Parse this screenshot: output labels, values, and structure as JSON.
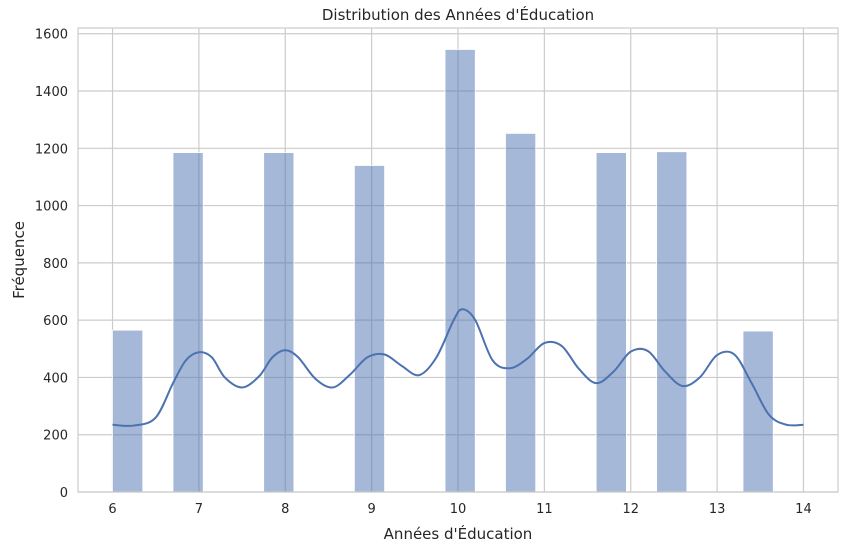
{
  "chart_data": {
    "type": "bar",
    "title": "Distribution des Années d'Éducation",
    "xlabel": "Années d'Éducation",
    "ylabel": "Fréquence",
    "xlim": [
      5.6,
      14.4
    ],
    "ylim": [
      0,
      1620
    ],
    "xticks": [
      6,
      7,
      8,
      9,
      10,
      11,
      12,
      13,
      14
    ],
    "yticks": [
      0,
      200,
      400,
      600,
      800,
      1000,
      1200,
      1400,
      1600
    ],
    "grid": true,
    "bar_color": "#4c72b0",
    "line_color": "#4c72b0",
    "bars": [
      {
        "x0": 6.0,
        "x1": 6.35,
        "value": 565
      },
      {
        "x0": 6.7,
        "x1": 7.05,
        "value": 1185
      },
      {
        "x0": 7.75,
        "x1": 8.1,
        "value": 1185
      },
      {
        "x0": 8.8,
        "x1": 9.15,
        "value": 1140
      },
      {
        "x0": 9.85,
        "x1": 10.2,
        "value": 1545
      },
      {
        "x0": 10.55,
        "x1": 10.9,
        "value": 1252
      },
      {
        "x0": 11.6,
        "x1": 11.95,
        "value": 1185
      },
      {
        "x0": 12.3,
        "x1": 12.65,
        "value": 1188
      },
      {
        "x0": 13.3,
        "x1": 13.65,
        "value": 562
      }
    ],
    "kde": {
      "x": [
        6.0,
        6.25,
        6.5,
        6.7,
        6.85,
        7.0,
        7.15,
        7.3,
        7.5,
        7.7,
        7.85,
        8.0,
        8.15,
        8.35,
        8.55,
        8.75,
        8.95,
        9.15,
        9.35,
        9.55,
        9.75,
        9.95,
        10.05,
        10.2,
        10.4,
        10.6,
        10.8,
        11.0,
        11.2,
        11.4,
        11.6,
        11.8,
        12.0,
        12.2,
        12.4,
        12.6,
        12.8,
        13.0,
        13.2,
        13.4,
        13.6,
        13.8,
        14.0
      ],
      "y": [
        235,
        232,
        260,
        380,
        460,
        488,
        470,
        400,
        365,
        405,
        470,
        495,
        470,
        395,
        365,
        410,
        470,
        480,
        440,
        408,
        470,
        600,
        638,
        600,
        460,
        432,
        465,
        520,
        510,
        430,
        380,
        420,
        490,
        492,
        420,
        370,
        400,
        478,
        480,
        380,
        270,
        235,
        235
      ]
    }
  }
}
